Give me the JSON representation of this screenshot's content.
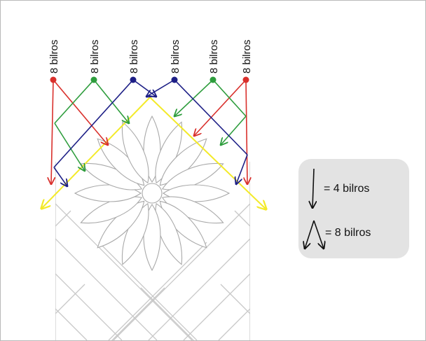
{
  "diagram": {
    "pair_labels": [
      "8 bilros",
      "8 bilros",
      "8 bilros",
      "8 bilros",
      "8 bilros",
      "8 bilros"
    ],
    "thread_colors": {
      "red": "#d9302c",
      "green": "#2e9d3d",
      "blue": "#1d1f86",
      "yellow": "#f3ea2a",
      "grid": "#c8c8c8"
    }
  },
  "legend": {
    "single_label": "= 4 bilros",
    "double_label": "= 8 bilros"
  }
}
